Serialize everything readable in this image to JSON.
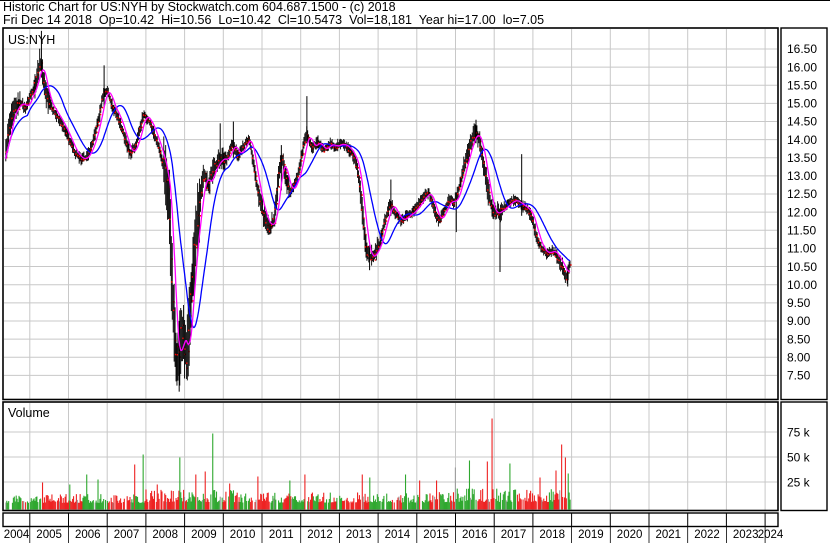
{
  "header": {
    "line1": "Historic Chart for US:NYH by Stockwatch.com 604.687.1500 - (c) 2018",
    "line2": "Fri Dec 14 2018  Op=10.42  Hi=10.56  Lo=10.42  Cl=10.5473  Vol=18,181  Year hi=17.00  lo=7.05"
  },
  "price_panel": {
    "symbol": "US:NYH",
    "y_ticks": [
      "16.50",
      "16.00",
      "15.50",
      "15.00",
      "14.50",
      "14.00",
      "13.50",
      "13.00",
      "12.50",
      "12.00",
      "11.50",
      "11.00",
      "10.50",
      "10.00",
      "9.50",
      "9.00",
      "8.50",
      "8.00",
      "7.50"
    ]
  },
  "volume_panel": {
    "label": "Volume",
    "y_ticks": [
      "75 k",
      "50 k",
      "25 k"
    ]
  },
  "x_axis": {
    "years": [
      "2004",
      "2005",
      "2006",
      "2007",
      "2008",
      "2009",
      "2010",
      "2011",
      "2012",
      "2013",
      "2014",
      "2015",
      "2016",
      "2017",
      "2018",
      "2019",
      "2020",
      "2021",
      "2022",
      "2023",
      "2024"
    ]
  },
  "colors": {
    "background": "#ffffff",
    "grid": "#c8c8c8",
    "border": "#000000",
    "bar": "#000000",
    "close_tick": "#ff0000",
    "ma_fast": "#ff00ff",
    "ma_slow": "#0000ff",
    "vol_up": "#2fa82f",
    "vol_down": "#ee2222",
    "vol_neutral": "#9c9c9c"
  },
  "chart_data": {
    "type": "line",
    "subtype": "daily OHLC bar chart with two moving averages and volume subpanel",
    "symbol": "US:NYH",
    "title": "Historic Chart for US:NYH by Stockwatch.com 604.687.1500 - (c) 2018",
    "last_quote": {
      "date": "Fri Dec 14 2018",
      "open": 10.42,
      "high": 10.56,
      "low": 10.42,
      "close": 10.5473,
      "volume": 18181
    },
    "year_high": 17.0,
    "year_low": 7.05,
    "x_range": [
      2004.38,
      2018.96
    ],
    "x_axis_years": [
      2004,
      2024
    ],
    "price_ylim": [
      6.9,
      17.0
    ],
    "price_tick_step": 0.5,
    "volume_ticks_k": [
      25,
      50,
      75
    ],
    "grid": "on",
    "legend": "none",
    "series": [
      {
        "name": "price-close-anchors",
        "note": "close values read off chart (year.fraction, price)",
        "points": [
          [
            2004.38,
            13.5
          ],
          [
            2004.47,
            14.3
          ],
          [
            2004.56,
            14.7
          ],
          [
            2004.66,
            14.9
          ],
          [
            2004.78,
            15.05
          ],
          [
            2004.9,
            14.85
          ],
          [
            2005.02,
            15.2
          ],
          [
            2005.16,
            15.55
          ],
          [
            2005.28,
            16.15
          ],
          [
            2005.36,
            15.7
          ],
          [
            2005.46,
            15.15
          ],
          [
            2005.6,
            14.85
          ],
          [
            2005.75,
            14.6
          ],
          [
            2005.9,
            14.3
          ],
          [
            2006.05,
            13.95
          ],
          [
            2006.2,
            13.6
          ],
          [
            2006.35,
            13.45
          ],
          [
            2006.5,
            13.55
          ],
          [
            2006.65,
            13.95
          ],
          [
            2006.8,
            14.6
          ],
          [
            2006.92,
            15.3
          ],
          [
            2007.02,
            15.35
          ],
          [
            2007.15,
            14.9
          ],
          [
            2007.3,
            14.6
          ],
          [
            2007.45,
            14.1
          ],
          [
            2007.6,
            13.6
          ],
          [
            2007.75,
            13.85
          ],
          [
            2007.95,
            14.7
          ],
          [
            2008.1,
            14.5
          ],
          [
            2008.25,
            14.1
          ],
          [
            2008.4,
            13.6
          ],
          [
            2008.52,
            13.05
          ],
          [
            2008.62,
            12.3
          ],
          [
            2008.7,
            9.6
          ],
          [
            2008.78,
            8.4
          ],
          [
            2008.85,
            7.7
          ],
          [
            2008.92,
            8.8
          ],
          [
            2009.0,
            8.4
          ],
          [
            2009.06,
            7.9
          ],
          [
            2009.14,
            9.0
          ],
          [
            2009.22,
            10.3
          ],
          [
            2009.32,
            11.5
          ],
          [
            2009.42,
            12.4
          ],
          [
            2009.52,
            13.1
          ],
          [
            2009.62,
            12.7
          ],
          [
            2009.72,
            13.1
          ],
          [
            2009.85,
            13.35
          ],
          [
            2009.95,
            13.5
          ],
          [
            2010.1,
            13.45
          ],
          [
            2010.25,
            13.9
          ],
          [
            2010.4,
            13.55
          ],
          [
            2010.55,
            13.85
          ],
          [
            2010.68,
            14.05
          ],
          [
            2010.8,
            13.3
          ],
          [
            2010.92,
            12.5
          ],
          [
            2011.06,
            11.9
          ],
          [
            2011.2,
            11.55
          ],
          [
            2011.33,
            11.8
          ],
          [
            2011.45,
            13.05
          ],
          [
            2011.53,
            13.5
          ],
          [
            2011.64,
            12.9
          ],
          [
            2011.74,
            12.55
          ],
          [
            2011.86,
            12.8
          ],
          [
            2011.97,
            13.15
          ],
          [
            2012.08,
            13.8
          ],
          [
            2012.18,
            14.2
          ],
          [
            2012.3,
            13.75
          ],
          [
            2012.45,
            13.95
          ],
          [
            2012.6,
            13.7
          ],
          [
            2012.75,
            13.9
          ],
          [
            2012.9,
            13.8
          ],
          [
            2013.05,
            13.9
          ],
          [
            2013.2,
            13.8
          ],
          [
            2013.35,
            13.6
          ],
          [
            2013.48,
            13.2
          ],
          [
            2013.58,
            12.3
          ],
          [
            2013.68,
            11.2
          ],
          [
            2013.78,
            10.75
          ],
          [
            2013.9,
            10.8
          ],
          [
            2014.05,
            11.15
          ],
          [
            2014.2,
            11.8
          ],
          [
            2014.33,
            12.25
          ],
          [
            2014.45,
            12.0
          ],
          [
            2014.6,
            11.75
          ],
          [
            2014.75,
            11.9
          ],
          [
            2014.9,
            12.0
          ],
          [
            2015.05,
            12.2
          ],
          [
            2015.2,
            12.45
          ],
          [
            2015.33,
            12.55
          ],
          [
            2015.45,
            12.1
          ],
          [
            2015.58,
            11.75
          ],
          [
            2015.7,
            12.0
          ],
          [
            2015.85,
            12.35
          ],
          [
            2015.97,
            12.25
          ],
          [
            2016.1,
            12.65
          ],
          [
            2016.25,
            13.3
          ],
          [
            2016.4,
            13.9
          ],
          [
            2016.52,
            14.2
          ],
          [
            2016.63,
            14.0
          ],
          [
            2016.75,
            13.3
          ],
          [
            2016.88,
            12.4
          ],
          [
            2017.0,
            11.95
          ],
          [
            2017.12,
            12.0
          ],
          [
            2017.25,
            12.1
          ],
          [
            2017.4,
            12.25
          ],
          [
            2017.55,
            12.35
          ],
          [
            2017.7,
            12.2
          ],
          [
            2017.85,
            12.1
          ],
          [
            2017.97,
            11.9
          ],
          [
            2018.1,
            11.35
          ],
          [
            2018.25,
            10.95
          ],
          [
            2018.4,
            10.85
          ],
          [
            2018.52,
            10.95
          ],
          [
            2018.65,
            10.75
          ],
          [
            2018.78,
            10.5
          ],
          [
            2018.88,
            10.2
          ],
          [
            2018.96,
            10.55
          ]
        ]
      },
      {
        "name": "intraday-range-spikes",
        "note": "notable single-bar extremes (t, low, high)",
        "points": [
          [
            2005.3,
            15.8,
            17.0
          ],
          [
            2006.92,
            14.9,
            16.05
          ],
          [
            2008.86,
            7.05,
            9.0
          ],
          [
            2009.92,
            13.4,
            14.45
          ],
          [
            2010.26,
            13.5,
            14.5
          ],
          [
            2011.5,
            12.6,
            13.85
          ],
          [
            2012.16,
            13.9,
            15.2
          ],
          [
            2013.78,
            10.4,
            11.1
          ],
          [
            2014.33,
            11.9,
            12.9
          ],
          [
            2016.02,
            11.45,
            12.55
          ],
          [
            2016.53,
            13.9,
            14.55
          ],
          [
            2017.15,
            10.35,
            12.1
          ],
          [
            2017.71,
            11.9,
            13.6
          ],
          [
            2018.9,
            9.95,
            10.5
          ]
        ]
      },
      {
        "name": "ma-fast",
        "color": "#ff00ff",
        "window_bars": 7
      },
      {
        "name": "ma-slow",
        "color": "#0000ff",
        "window_bars": 24
      }
    ],
    "volatility_windows": {
      "default": 0.15,
      "windows": [
        [
          2004.36,
          2004.75,
          0.3
        ],
        [
          2005.1,
          2005.55,
          0.32
        ],
        [
          2008.45,
          2009.4,
          0.85
        ],
        [
          2009.4,
          2010.1,
          0.3
        ],
        [
          2010.9,
          2011.7,
          0.26
        ],
        [
          2013.5,
          2014.0,
          0.28
        ],
        [
          2016.2,
          2017.2,
          0.27
        ],
        [
          2018.6,
          2019.0,
          0.2
        ]
      ]
    },
    "volume_k": {
      "base_by_era": [
        [
          2004.0,
          2008.0,
          5.5
        ],
        [
          2008.0,
          2010.5,
          8.0
        ],
        [
          2010.5,
          2016.0,
          6.5
        ],
        [
          2016.0,
          2019.1,
          8.5
        ]
      ],
      "spikes": [
        [
          2005.32,
          22,
          "down"
        ],
        [
          2006.04,
          20,
          "up"
        ],
        [
          2006.48,
          30,
          "up"
        ],
        [
          2006.76,
          25,
          "up"
        ],
        [
          2007.72,
          40,
          "down"
        ],
        [
          2007.93,
          50,
          "up"
        ],
        [
          2008.3,
          20,
          "down"
        ],
        [
          2008.88,
          47,
          "up"
        ],
        [
          2009.3,
          30,
          "down"
        ],
        [
          2009.53,
          33,
          "down"
        ],
        [
          2009.73,
          71,
          "up"
        ],
        [
          2010.17,
          21,
          "down"
        ],
        [
          2010.9,
          28,
          "down"
        ],
        [
          2011.72,
          24,
          "up"
        ],
        [
          2012.11,
          30,
          "down"
        ],
        [
          2013.58,
          30,
          "down"
        ],
        [
          2013.79,
          27,
          "up"
        ],
        [
          2014.7,
          30,
          "up"
        ],
        [
          2015.08,
          24,
          "down"
        ],
        [
          2015.52,
          24,
          "down"
        ],
        [
          2015.99,
          37,
          "neutral"
        ],
        [
          2016.37,
          44,
          "up"
        ],
        [
          2016.81,
          43,
          "down"
        ],
        [
          2016.94,
          86,
          "down"
        ],
        [
          2017.41,
          41,
          "up"
        ],
        [
          2018.18,
          27,
          "down"
        ],
        [
          2018.6,
          34,
          "down"
        ],
        [
          2018.75,
          60,
          "down"
        ],
        [
          2018.85,
          47,
          "down"
        ],
        [
          2018.91,
          31,
          "up"
        ]
      ]
    }
  }
}
